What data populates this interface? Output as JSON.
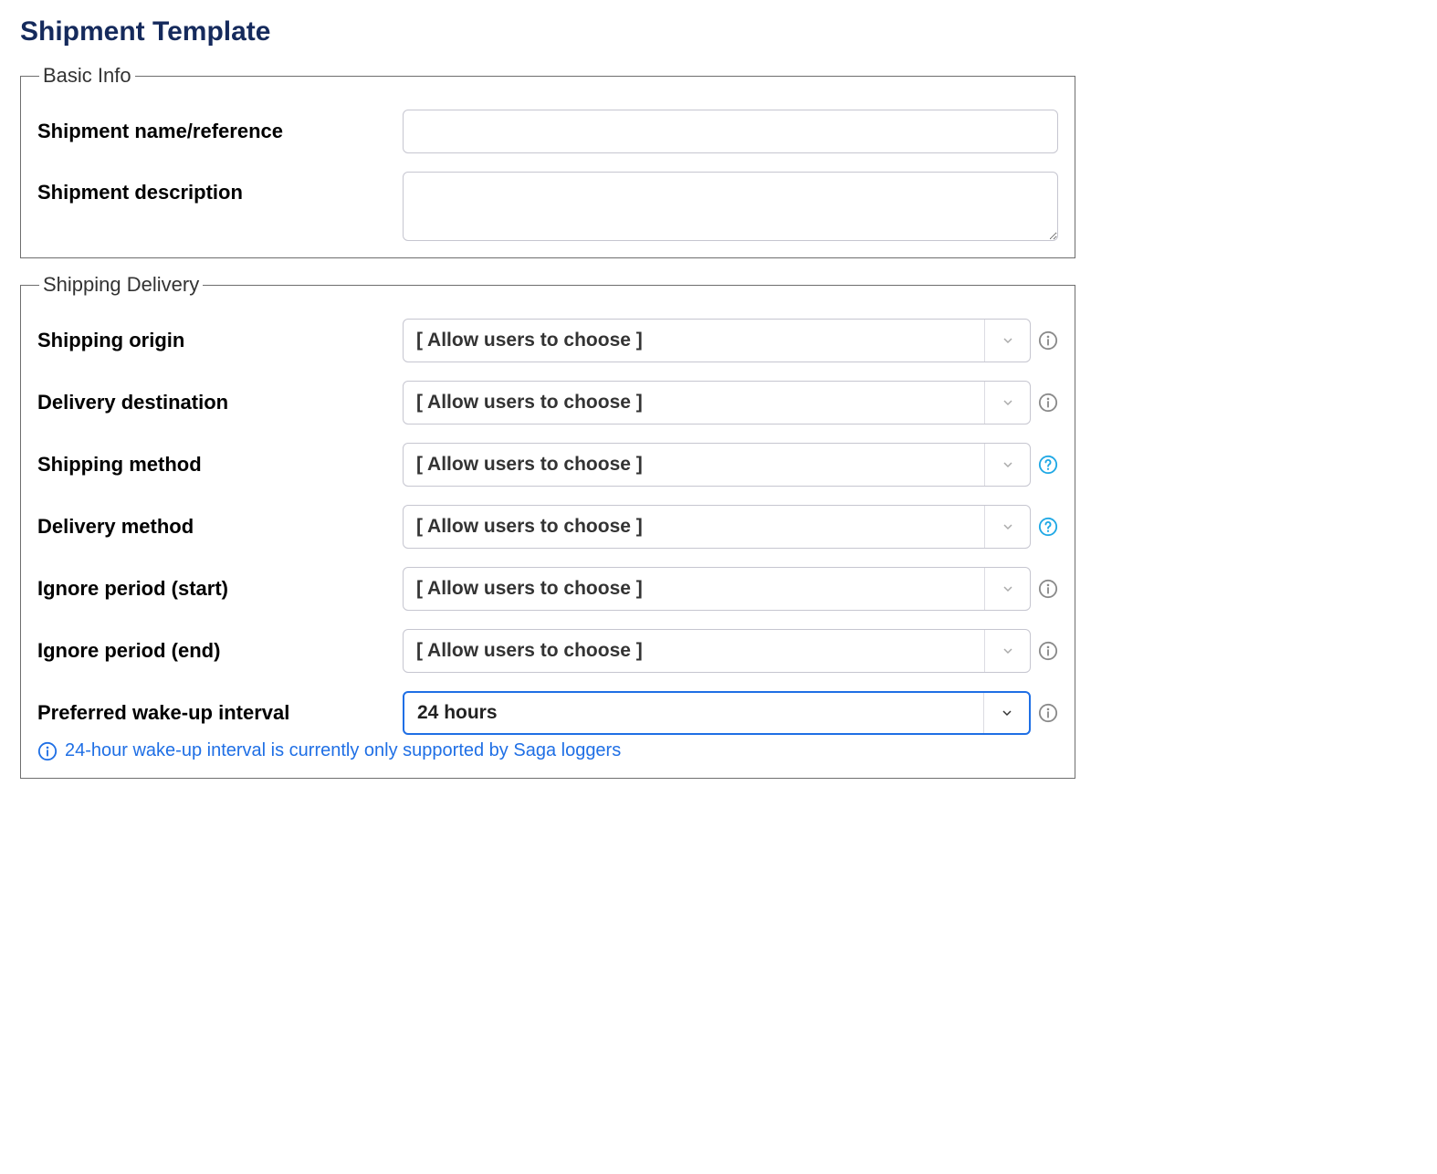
{
  "page_title": "Shipment Template",
  "colors": {
    "title": "#152a5c",
    "link_blue": "#1f6fe5",
    "border_gray": "#6e6e6e",
    "input_border": "#c6c6d0",
    "icon_gray": "#8a8a8a"
  },
  "basic_info": {
    "legend": "Basic Info",
    "name_label": "Shipment name/reference",
    "name_value": "",
    "name_placeholder": "",
    "description_label": "Shipment description",
    "description_value": "",
    "description_placeholder": ""
  },
  "shipping_delivery": {
    "legend": "Shipping Delivery",
    "rows": [
      {
        "key": "shipping-origin",
        "label": "Shipping origin",
        "value": "[ Allow users to choose ]",
        "active": false,
        "help_style": "info"
      },
      {
        "key": "delivery-destination",
        "label": "Delivery destination",
        "value": "[ Allow users to choose ]",
        "active": false,
        "help_style": "info"
      },
      {
        "key": "shipping-method",
        "label": "Shipping method",
        "value": "[ Allow users to choose ]",
        "active": false,
        "help_style": "help"
      },
      {
        "key": "delivery-method",
        "label": "Delivery method",
        "value": "[ Allow users to choose ]",
        "active": false,
        "help_style": "help"
      },
      {
        "key": "ignore-period-start",
        "label": "Ignore period (start)",
        "value": "[ Allow users to choose ]",
        "active": false,
        "help_style": "info"
      },
      {
        "key": "ignore-period-end",
        "label": "Ignore period (end)",
        "value": "[ Allow users to choose ]",
        "active": false,
        "help_style": "info"
      },
      {
        "key": "preferred-wakeup",
        "label": "Preferred wake-up interval",
        "value": "24 hours",
        "active": true,
        "help_style": "info"
      }
    ],
    "note_text": "24-hour wake-up interval is currently only supported by Saga loggers"
  }
}
